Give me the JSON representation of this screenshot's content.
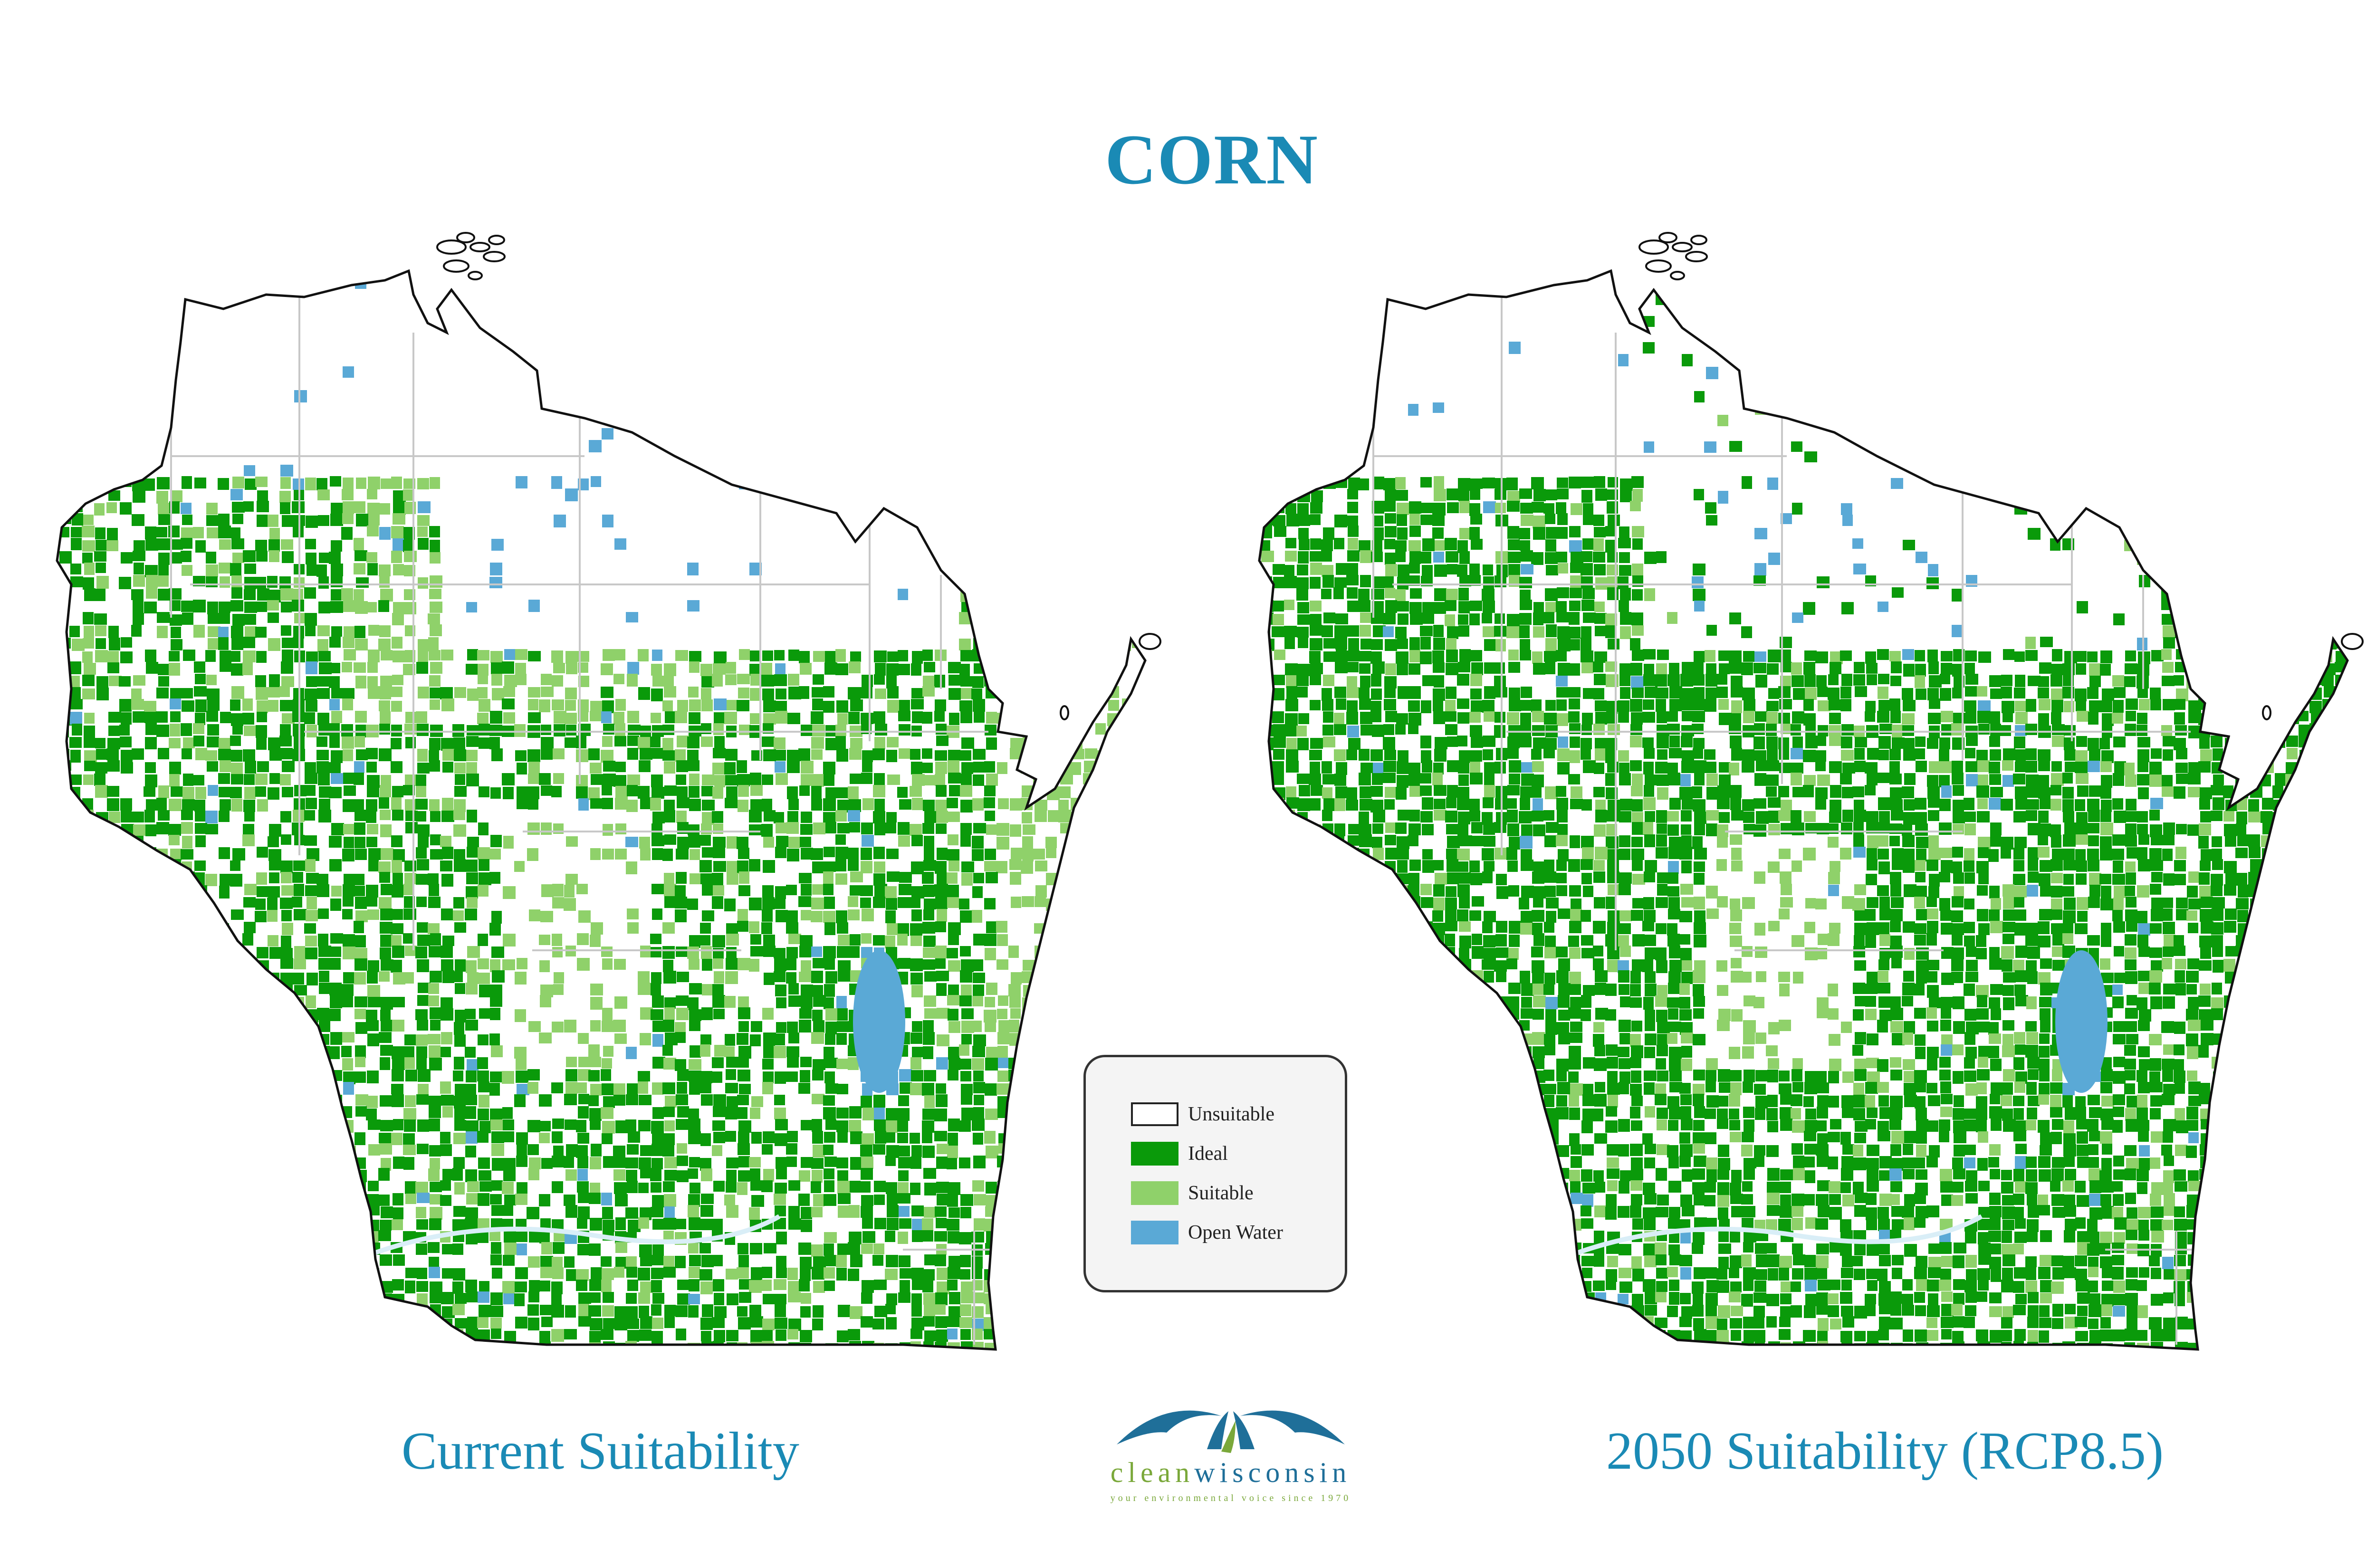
{
  "title": "CORN",
  "maps": [
    {
      "caption": "Current Suitability",
      "scenario": "current"
    },
    {
      "caption": "2050 Suitability (RCP8.5)",
      "scenario": "2050"
    }
  ],
  "legend": {
    "items": [
      {
        "label": "Unsuitable",
        "color": "#ffffff"
      },
      {
        "label": "Ideal",
        "color": "#0a9a0a"
      },
      {
        "label": "Suitable",
        "color": "#8fd16a"
      },
      {
        "label": "Open Water",
        "color": "#5aa9d6"
      }
    ]
  },
  "logo": {
    "clean": "clean",
    "wisconsin": "wisconsin",
    "tagline": "your environmental voice since 1970"
  },
  "colors": {
    "title": "#1a8ab5",
    "ideal": "#0a9a0a",
    "suitable": "#8fd16a",
    "water": "#5aa9d6",
    "outline": "#111111",
    "county": "#c8c8c8"
  }
}
